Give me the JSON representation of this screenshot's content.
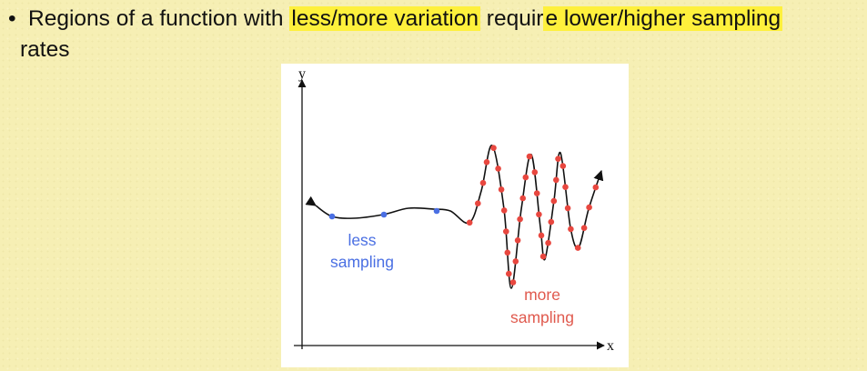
{
  "slide": {
    "bullet": "•",
    "text_1": "Regions of a function with ",
    "highlight_1": "less/more variation",
    "text_2": " requir",
    "highlight_2": "e lower/higher sampling",
    "text_3": "rates"
  },
  "figure": {
    "x_axis_label": "x",
    "y_axis_label": "y",
    "less_label_line1": "less",
    "less_label_line2": "sampling",
    "more_label_line1": "more",
    "more_label_line2": "sampling",
    "colors": {
      "less_points": "#4a6fe3",
      "more_points": "#e8473f",
      "less_text": "#4a6fe3",
      "more_text": "#e05a4e",
      "curve": "#111111"
    },
    "less_sample_count": 3,
    "more_sample_count": 36
  }
}
